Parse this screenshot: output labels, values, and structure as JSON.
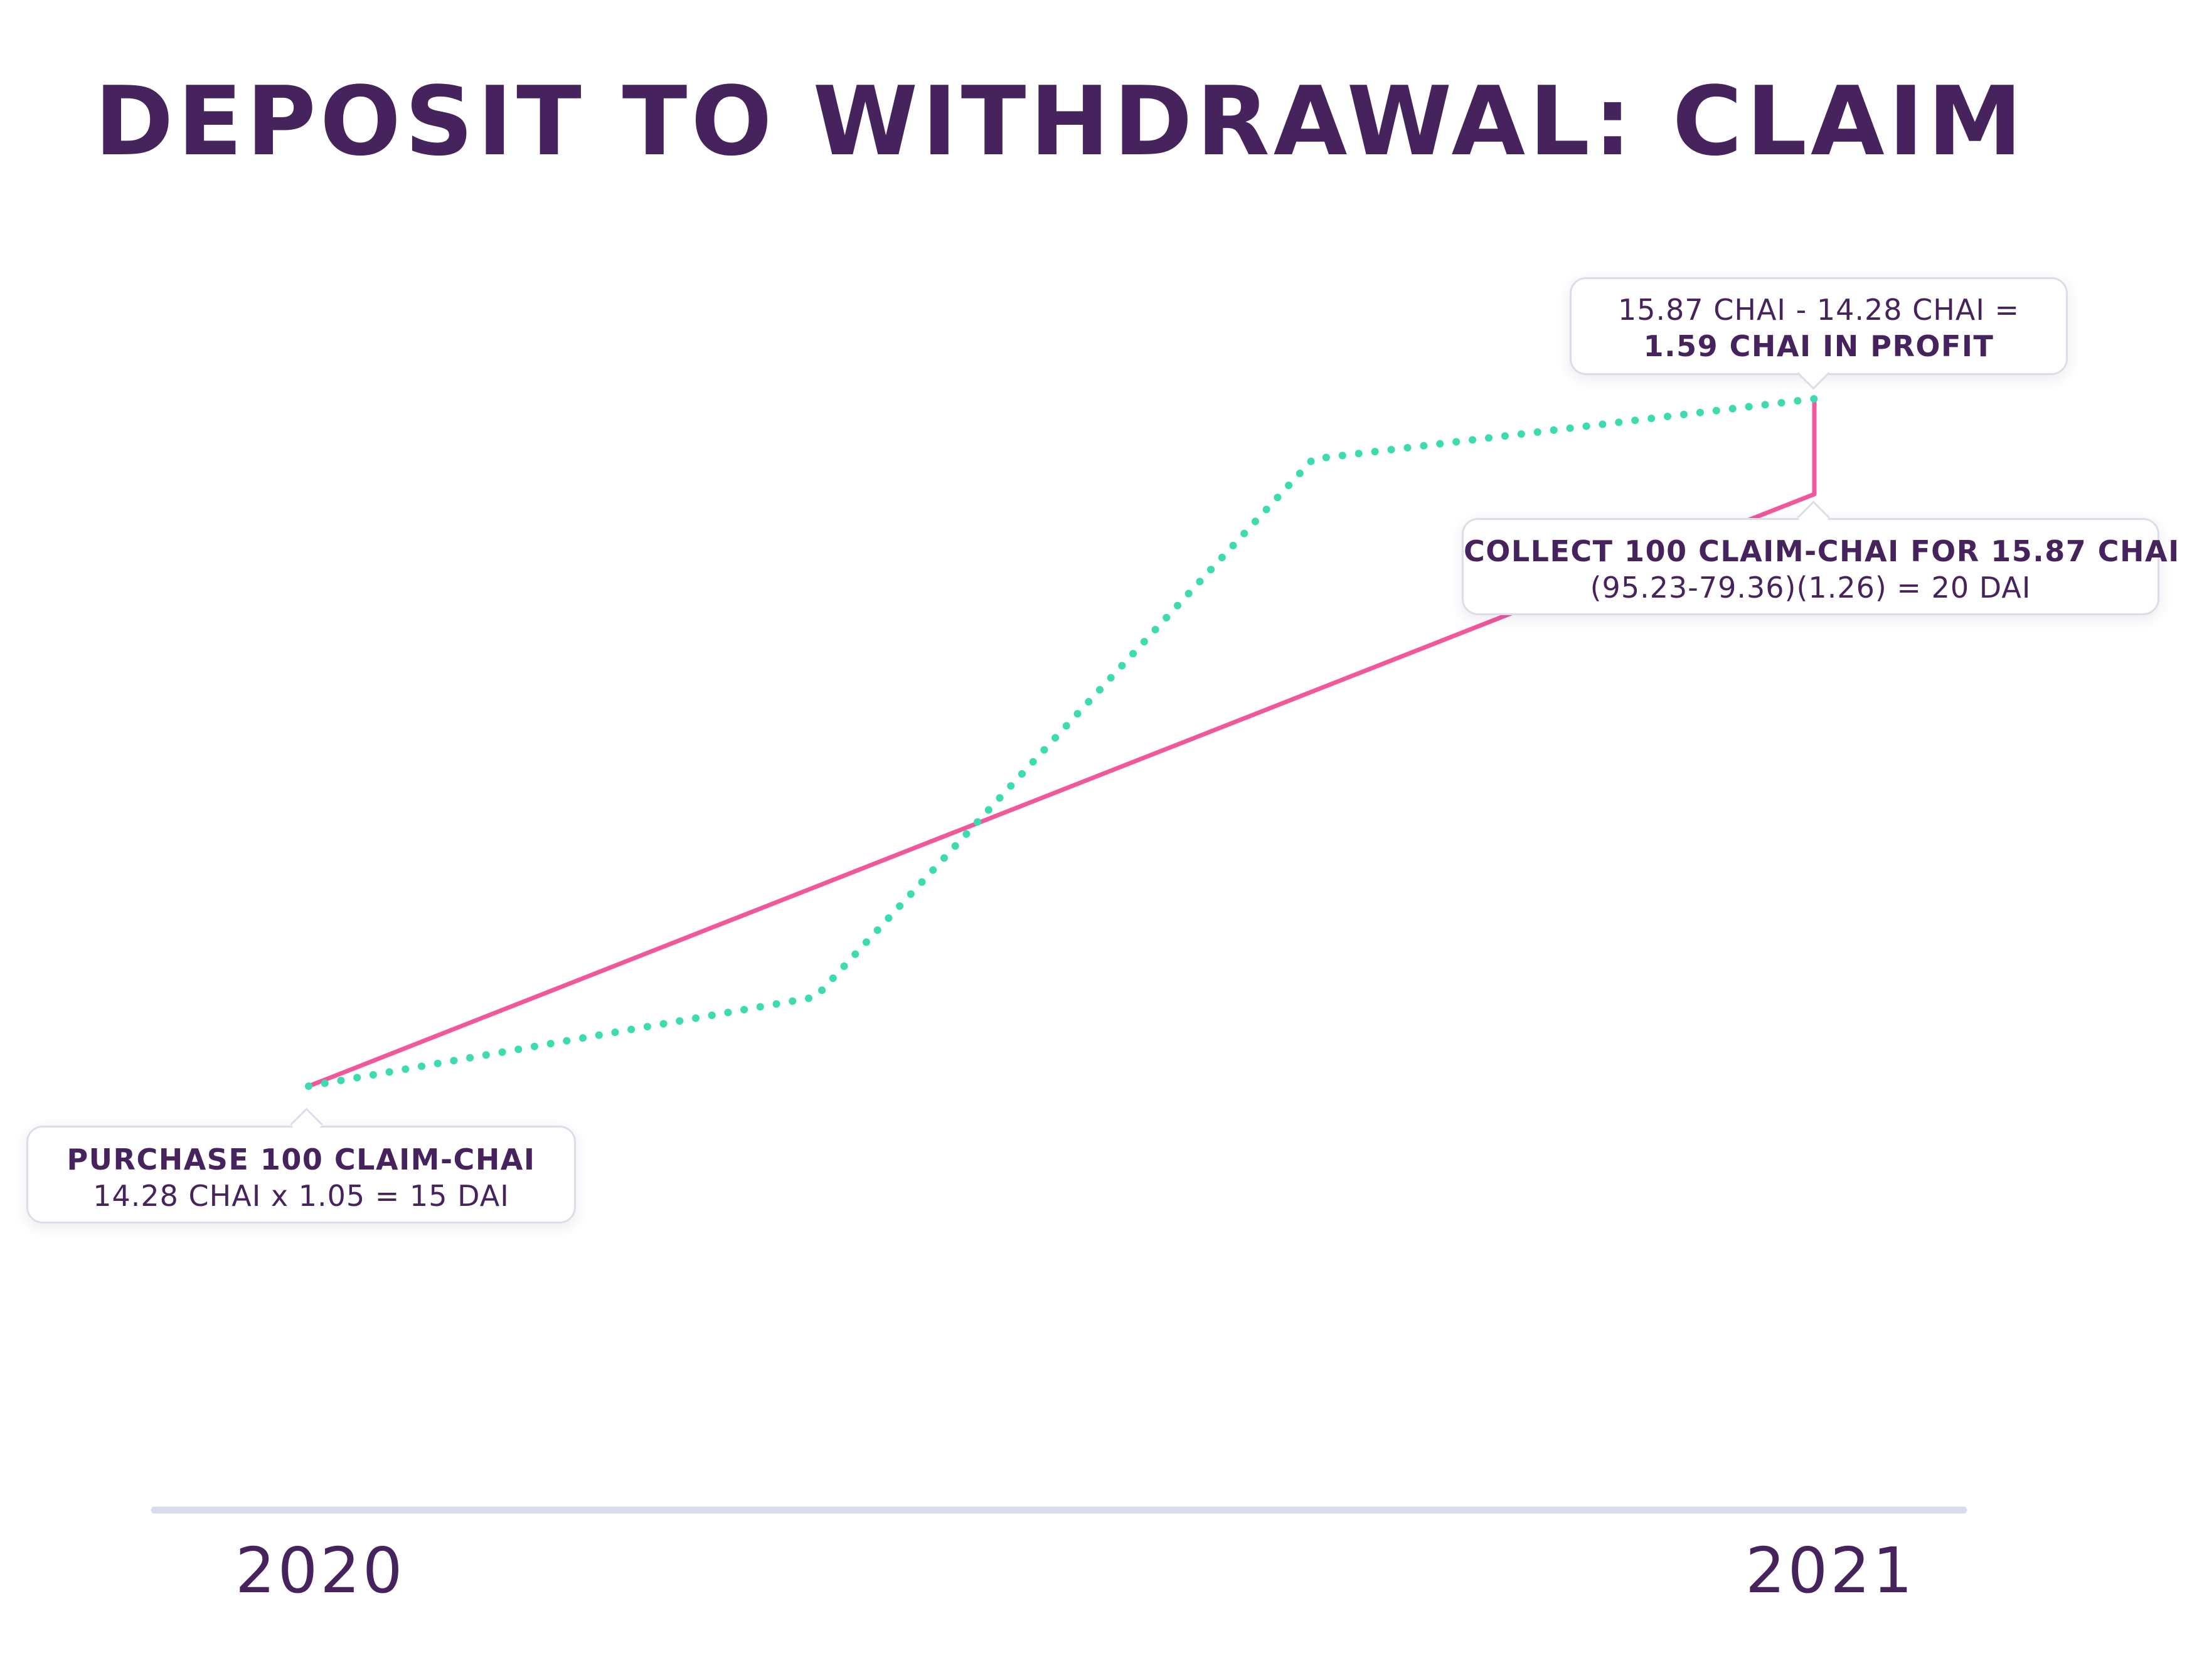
{
  "title": "DEPOSIT TO WITHDRAWAL: CLAIM",
  "timeline": {
    "start_label": "2020",
    "end_label": "2021"
  },
  "callouts": {
    "purchase": {
      "heading": "PURCHASE 100 CLAIM-CHAI",
      "detail": "14.28 CHAI x 1.05 = 15 DAI"
    },
    "collect": {
      "heading": "COLLECT 100 CLAIM-CHAI FOR 15.87 CHAI",
      "detail": "(95.23-79.36)(1.26) = 20 DAI"
    },
    "profit": {
      "equation": "15.87 CHAI - 14.28 CHAI =",
      "result": "1.59 CHAI IN PROFIT"
    }
  },
  "colors": {
    "title": "#46235c",
    "solid_line": "#f1579b",
    "dotted_line": "#3ddbb0",
    "axis": "#d8dbeb",
    "callout_border": "#dcdde8"
  },
  "lines": {
    "solid": {
      "style": "solid",
      "color": "#f1579b"
    },
    "dotted": {
      "style": "dotted",
      "color": "#3ddbb0"
    }
  }
}
